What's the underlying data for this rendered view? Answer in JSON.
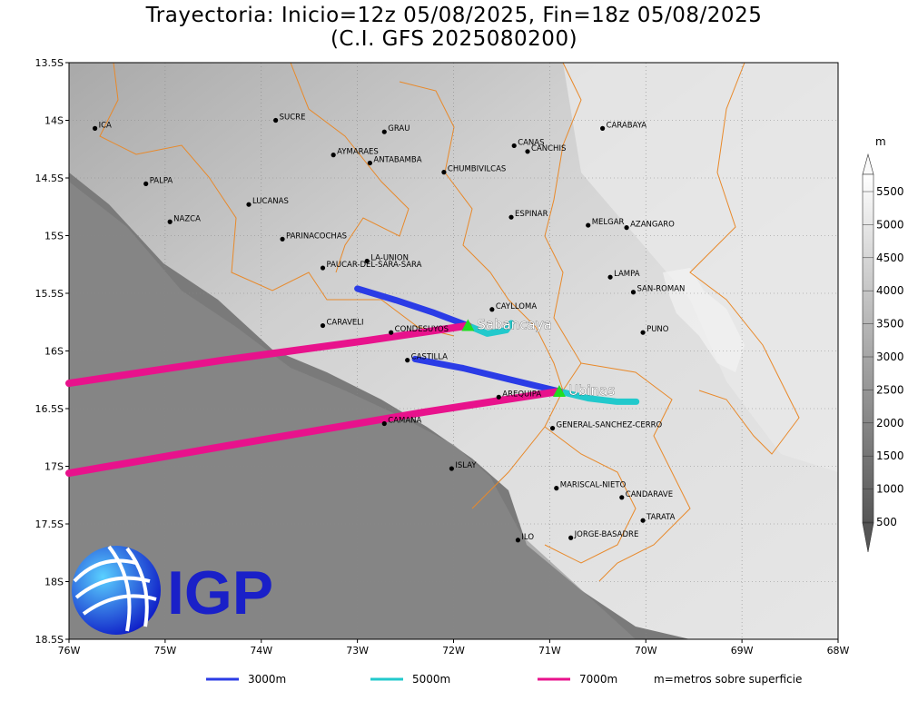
{
  "title": {
    "line1": "Trayectoria: Inicio=12z 05/08/2025, Fin=18z 05/08/2025",
    "line2": "(C.I. GFS 2025080200)"
  },
  "axes": {
    "lon_ticks": [
      "76W",
      "75W",
      "74W",
      "73W",
      "72W",
      "71W",
      "70W",
      "69W",
      "68W"
    ],
    "lat_ticks": [
      "13.5S",
      "14S",
      "14.5S",
      "15S",
      "15.5S",
      "16S",
      "16.5S",
      "17S",
      "17.5S",
      "18S",
      "18.5S"
    ],
    "lon_range": [
      -76,
      -68
    ],
    "lat_range": [
      -18.5,
      -13.5
    ]
  },
  "colorbar": {
    "unit": "m",
    "labels": [
      "5500",
      "5000",
      "4500",
      "4000",
      "3500",
      "3000",
      "2500",
      "2000",
      "1500",
      "1000",
      "500"
    ]
  },
  "logo": {
    "text": "IGP"
  },
  "volcanoes": [
    {
      "name": "Sabancaya",
      "lon": -71.85,
      "lat": -15.78
    },
    {
      "name": "Ubinas",
      "lon": -70.9,
      "lat": -16.35
    }
  ],
  "places": [
    {
      "name": "ICA",
      "lon": -75.73,
      "lat": -14.07
    },
    {
      "name": "SUCRE",
      "lon": -73.85,
      "lat": -14.0
    },
    {
      "name": "GRAU",
      "lon": -72.72,
      "lat": -14.1
    },
    {
      "name": "CARABAYA",
      "lon": -70.45,
      "lat": -14.07
    },
    {
      "name": "AYMARAES",
      "lon": -73.25,
      "lat": -14.3
    },
    {
      "name": "CANAS",
      "lon": -71.37,
      "lat": -14.22
    },
    {
      "name": "CANCHIS",
      "lon": -71.23,
      "lat": -14.27
    },
    {
      "name": "ANTABAMBA",
      "lon": -72.87,
      "lat": -14.37
    },
    {
      "name": "CHUMBIVILCAS",
      "lon": -72.1,
      "lat": -14.45
    },
    {
      "name": "PALPA",
      "lon": -75.2,
      "lat": -14.55
    },
    {
      "name": "LUCANAS",
      "lon": -74.13,
      "lat": -14.73
    },
    {
      "name": "NAZCA",
      "lon": -74.95,
      "lat": -14.88
    },
    {
      "name": "ESPINAR",
      "lon": -71.4,
      "lat": -14.84
    },
    {
      "name": "MELGAR",
      "lon": -70.6,
      "lat": -14.91
    },
    {
      "name": "AZANGARO",
      "lon": -70.2,
      "lat": -14.93
    },
    {
      "name": "PARINACOCHAS",
      "lon": -73.78,
      "lat": -15.03
    },
    {
      "name": "LA-UNION",
      "lon": -72.9,
      "lat": -15.22
    },
    {
      "name": "PAUCAR-DEL-SARA-SARA",
      "lon": -73.36,
      "lat": -15.28
    },
    {
      "name": "LAMPA",
      "lon": -70.37,
      "lat": -15.36
    },
    {
      "name": "SAN-ROMAN",
      "lon": -70.13,
      "lat": -15.49
    },
    {
      "name": "CAYLLOMA",
      "lon": -71.6,
      "lat": -15.64
    },
    {
      "name": "CARAVELI",
      "lon": -73.36,
      "lat": -15.78
    },
    {
      "name": "CONDESUYOS",
      "lon": -72.65,
      "lat": -15.84
    },
    {
      "name": "PUNO",
      "lon": -70.03,
      "lat": -15.84
    },
    {
      "name": "CASTILLA",
      "lon": -72.48,
      "lat": -16.08
    },
    {
      "name": "AREQUIPA",
      "lon": -71.53,
      "lat": -16.4
    },
    {
      "name": "CAMANA",
      "lon": -72.72,
      "lat": -16.63
    },
    {
      "name": "GENERAL-SANCHEZ-CERRO",
      "lon": -70.97,
      "lat": -16.67
    },
    {
      "name": "ISLAY",
      "lon": -72.02,
      "lat": -17.02
    },
    {
      "name": "MARISCAL-NIETO",
      "lon": -70.93,
      "lat": -17.19
    },
    {
      "name": "CANDARAVE",
      "lon": -70.25,
      "lat": -17.27
    },
    {
      "name": "TARATA",
      "lon": -70.03,
      "lat": -17.47
    },
    {
      "name": "ILO",
      "lon": -71.33,
      "lat": -17.64
    },
    {
      "name": "JORGE-BASADRE",
      "lon": -70.78,
      "lat": -17.62
    }
  ],
  "trajectories": [
    {
      "level": "3000m",
      "color": "#2b3ce6",
      "origin": "Sabancaya",
      "path": [
        [
          -71.85,
          -15.78
        ],
        [
          -72.2,
          -15.67
        ],
        [
          -72.6,
          -15.56
        ],
        [
          -73.0,
          -15.46
        ]
      ]
    },
    {
      "level": "5000m",
      "color": "#22c9cc",
      "origin": "Sabancaya",
      "path": [
        [
          -71.85,
          -15.78
        ],
        [
          -71.65,
          -15.85
        ],
        [
          -71.45,
          -15.82
        ],
        [
          -71.4,
          -15.76
        ]
      ]
    },
    {
      "level": "7000m",
      "color": "#e8128c",
      "origin": "Sabancaya",
      "path": [
        [
          -71.85,
          -15.78
        ],
        [
          -72.9,
          -15.91
        ],
        [
          -74.4,
          -16.08
        ],
        [
          -76.0,
          -16.28
        ]
      ]
    },
    {
      "level": "3000m",
      "color": "#2b3ce6",
      "origin": "Ubinas",
      "path": [
        [
          -70.9,
          -16.35
        ],
        [
          -71.4,
          -16.25
        ],
        [
          -71.9,
          -16.15
        ],
        [
          -72.4,
          -16.07
        ]
      ]
    },
    {
      "level": "5000m",
      "color": "#22c9cc",
      "origin": "Ubinas",
      "path": [
        [
          -70.9,
          -16.35
        ],
        [
          -70.6,
          -16.41
        ],
        [
          -70.3,
          -16.44
        ],
        [
          -70.1,
          -16.44
        ]
      ]
    },
    {
      "level": "7000m",
      "color": "#e8128c",
      "origin": "Ubinas",
      "path": [
        [
          -70.9,
          -16.35
        ],
        [
          -72.3,
          -16.53
        ],
        [
          -74.2,
          -16.8
        ],
        [
          -76.0,
          -17.06
        ]
      ]
    }
  ],
  "legend": {
    "items": [
      {
        "label": "3000m",
        "color": "#2b3ce6"
      },
      {
        "label": "5000m",
        "color": "#22c9cc"
      },
      {
        "label": "7000m",
        "color": "#e8128c"
      }
    ],
    "note": "m=metros sobre superficie"
  }
}
